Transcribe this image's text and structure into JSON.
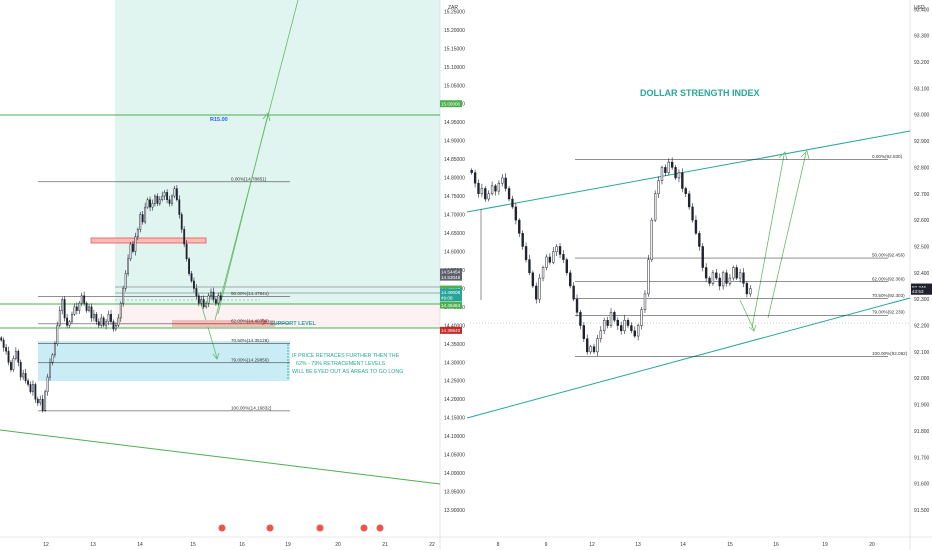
{
  "colors": {
    "up": "#1e222d",
    "down": "#1e222d",
    "green": "#4caf50",
    "teal": "#26a69a",
    "target_zone": "#e0f4f0",
    "buy_zone": "#c9ecf5",
    "red": "#ef5350",
    "fib": "#222222",
    "blue_text": "#2962ff"
  },
  "left_chart": {
    "currency": "ZAR",
    "target_label": "R15.00",
    "support_label": "SUPPORT LEVEL",
    "note_lines": [
      "IF PRICE RETRACES FURTHER THEN THE",
      "62% - 79% RETRACEMENT LEVELS",
      "WILL BE EYED OUT AS AREAS TO GO LONG"
    ],
    "fib_levels": [
      {
        "label": "0.00%(14.78851)",
        "value": 14.78851
      },
      {
        "label": "50.00%(14.47841)",
        "value": 14.47841
      },
      {
        "label": "62.00%(14.40399)",
        "value": 14.40399
      },
      {
        "label": "70.50%(14.35128)",
        "value": 14.35128
      },
      {
        "label": "79.00%(14.29856)",
        "value": 14.29856
      },
      {
        "label": "100.00%(14.16832)",
        "value": 14.16832
      }
    ],
    "price_tags": [
      {
        "text": "15.00000",
        "value": 15.0,
        "color": "#4caf50"
      },
      {
        "text": "14.54454",
        "value": 14.54454,
        "color": "#5d606b"
      },
      {
        "text": "14.53048",
        "value": 14.53048,
        "color": "#5d606b"
      },
      {
        "text": "14.49817",
        "value": 14.49817,
        "color": "#4caf50"
      },
      {
        "text": "14.49008",
        "value": 14.49008,
        "color": "#26a69a"
      },
      {
        "text": "49:08",
        "value": 14.475,
        "color": "#26a69a"
      },
      {
        "text": "14.45484",
        "value": 14.45484,
        "color": "#4caf50"
      },
      {
        "text": "14.38640",
        "value": 14.3864,
        "color": "#c62828"
      }
    ]
  },
  "right_chart": {
    "title": "DOLLAR STRENGTH INDEX",
    "currency": "USD",
    "fib_levels": [
      {
        "label": "0.00%(92.830)",
        "value": 92.83
      },
      {
        "label": "50.00%(92.456)",
        "value": 92.456
      },
      {
        "label": "62.00%(92.366)",
        "value": 92.366
      },
      {
        "label": "70.50%(92.303)",
        "value": 92.303
      },
      {
        "label": "79.00%(92.239)",
        "value": 92.239
      },
      {
        "label": "100.00%(92.082)",
        "value": 92.082
      }
    ],
    "price_tags": [
      {
        "text": "92.346",
        "value": 92.346,
        "color": "#1e222d"
      },
      {
        "text": "43:53",
        "value": 92.33,
        "color": "#1e222d"
      }
    ]
  },
  "chart_data": [
    {
      "type": "candlestick",
      "currency": "ZAR",
      "x_ticks": [
        "12",
        "13",
        "14",
        "15",
        "16",
        "19",
        "20",
        "21",
        "22"
      ],
      "y_ticks": [
        "15.25000",
        "15.20000",
        "15.15000",
        "15.10000",
        "15.05000",
        "15.00000",
        "14.95000",
        "14.90000",
        "14.85000",
        "14.80000",
        "14.75000",
        "14.70000",
        "14.65000",
        "14.60000",
        "14.55000",
        "14.50000",
        "14.45000",
        "14.40000",
        "14.35000",
        "14.30000",
        "14.25000",
        "14.20000",
        "14.15000",
        "14.10000",
        "14.05000",
        "14.00000",
        "13.95000",
        "13.90000"
      ],
      "ylim": [
        13.9,
        15.27
      ],
      "closes": [
        14.36,
        14.34,
        14.33,
        14.3,
        14.28,
        14.31,
        14.33,
        14.3,
        14.26,
        14.27,
        14.25,
        14.24,
        14.22,
        14.24,
        14.2,
        14.19,
        14.2,
        14.17,
        14.22,
        14.26,
        14.3,
        14.32,
        14.35,
        14.4,
        14.44,
        14.47,
        14.42,
        14.4,
        14.41,
        14.43,
        14.45,
        14.44,
        14.46,
        14.48,
        14.46,
        14.44,
        14.45,
        14.42,
        14.43,
        14.41,
        14.4,
        14.42,
        14.4,
        14.41,
        14.43,
        14.41,
        14.39,
        14.4,
        14.42,
        14.46,
        14.5,
        14.54,
        14.58,
        14.62,
        14.6,
        14.64,
        14.66,
        14.7,
        14.68,
        14.72,
        14.74,
        14.72,
        14.73,
        14.75,
        14.73,
        14.74,
        14.75,
        14.76,
        14.74,
        14.73,
        14.75,
        14.77,
        14.74,
        14.7,
        14.66,
        14.62,
        14.58,
        14.54,
        14.52,
        14.5,
        14.48,
        14.46,
        14.47,
        14.45,
        14.46,
        14.48,
        14.49,
        14.47,
        14.46,
        14.48,
        14.47
      ],
      "levels": {
        "target": 15.0,
        "support": 14.45484
      }
    },
    {
      "type": "candlestick",
      "title": "DOLLAR STRENGTH INDEX",
      "currency": "USD",
      "x_ticks": [
        "8",
        "9",
        "12",
        "13",
        "14",
        "15",
        "16",
        "19",
        "20"
      ],
      "y_ticks": [
        "93.400",
        "93.300",
        "93.200",
        "93.100",
        "93.000",
        "92.900",
        "92.800",
        "92.700",
        "92.600",
        "92.500",
        "92.400",
        "92.300",
        "92.200",
        "92.100",
        "92.000",
        "91.900",
        "91.800",
        "91.700",
        "91.600",
        "91.500"
      ],
      "ylim": [
        91.5,
        93.42
      ],
      "closes": [
        92.78,
        92.74,
        92.7,
        92.72,
        92.68,
        92.7,
        92.73,
        92.71,
        92.74,
        92.76,
        92.72,
        92.68,
        92.65,
        92.6,
        92.55,
        92.5,
        92.45,
        92.4,
        92.35,
        92.3,
        92.38,
        92.42,
        92.46,
        92.44,
        92.48,
        92.5,
        92.47,
        92.45,
        92.4,
        92.35,
        92.3,
        92.25,
        92.2,
        92.15,
        92.1,
        92.12,
        92.1,
        92.15,
        92.18,
        92.22,
        92.2,
        92.25,
        92.22,
        92.2,
        92.18,
        92.22,
        92.2,
        92.18,
        92.16,
        92.2,
        92.26,
        92.32,
        92.45,
        92.6,
        92.7,
        92.75,
        92.8,
        92.78,
        92.82,
        92.8,
        92.76,
        92.78,
        92.72,
        92.7,
        92.65,
        92.6,
        92.55,
        92.5,
        92.42,
        92.38,
        92.36,
        92.4,
        92.38,
        92.35,
        92.4,
        92.36,
        92.38,
        92.42,
        92.38,
        92.4,
        92.36,
        92.32,
        92.34
      ],
      "ylim_note": ""
    }
  ]
}
